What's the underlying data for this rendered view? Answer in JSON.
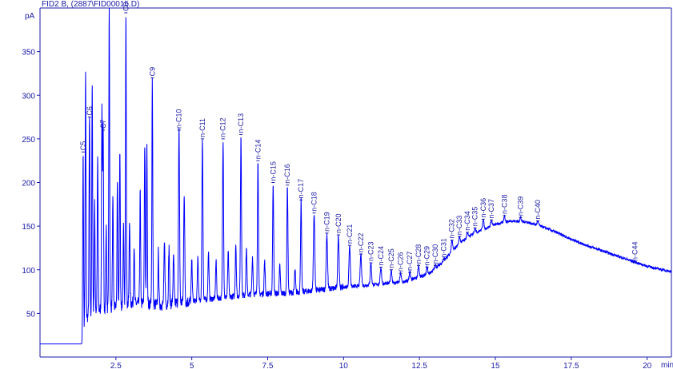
{
  "window": {
    "header": "FID2 B,  (2887\\FID00015.D)"
  },
  "chart_data": {
    "type": "line",
    "title": "",
    "xlabel": "min",
    "ylabel": "pA",
    "xlim": [
      0,
      20.8
    ],
    "ylim": [
      0,
      400
    ],
    "x_ticks": [
      "2.5",
      "5",
      "7.5",
      "10",
      "12.5",
      "15",
      "17.5",
      "20"
    ],
    "y_ticks": [
      "50",
      "100",
      "150",
      "200",
      "250",
      "300",
      "350"
    ],
    "colors": {
      "trace": "#0000ff",
      "axis": "#1a1aa6",
      "text": "#1a1aa6"
    },
    "baseline": [
      [
        0.0,
        15
      ],
      [
        1.4,
        15
      ],
      [
        1.5,
        45
      ],
      [
        2.0,
        55
      ],
      [
        2.5,
        58
      ],
      [
        3.0,
        62
      ],
      [
        4.0,
        60
      ],
      [
        5.0,
        64
      ],
      [
        6.0,
        68
      ],
      [
        7.0,
        72
      ],
      [
        8.0,
        73
      ],
      [
        9.0,
        76
      ],
      [
        10.0,
        80
      ],
      [
        11.0,
        83
      ],
      [
        12.0,
        86
      ],
      [
        12.8,
        95
      ],
      [
        13.3,
        110
      ],
      [
        13.8,
        130
      ],
      [
        14.3,
        142
      ],
      [
        15.0,
        152
      ],
      [
        15.5,
        156
      ],
      [
        16.0,
        155
      ],
      [
        16.5,
        150
      ],
      [
        17.0,
        143
      ],
      [
        17.5,
        135
      ],
      [
        18.0,
        128
      ],
      [
        18.5,
        122
      ],
      [
        19.0,
        116
      ],
      [
        19.5,
        110
      ],
      [
        20.0,
        104
      ],
      [
        20.5,
        100
      ],
      [
        20.8,
        98
      ]
    ],
    "peaks": [
      {
        "x": 1.42,
        "y": 235,
        "label": "C5"
      },
      {
        "x": 1.5,
        "y": 325,
        "label": ""
      },
      {
        "x": 1.63,
        "y": 275,
        "label": "C6"
      },
      {
        "x": 1.72,
        "y": 310,
        "label": ""
      },
      {
        "x": 1.8,
        "y": 175,
        "label": ""
      },
      {
        "x": 1.9,
        "y": 230,
        "label": ""
      },
      {
        "x": 2.04,
        "y": 285,
        "label": ""
      },
      {
        "x": 2.08,
        "y": 260,
        "label": "C7"
      },
      {
        "x": 2.18,
        "y": 150,
        "label": ""
      },
      {
        "x": 2.28,
        "y": 400,
        "label": ""
      },
      {
        "x": 2.4,
        "y": 180,
        "label": ""
      },
      {
        "x": 2.55,
        "y": 200,
        "label": ""
      },
      {
        "x": 2.63,
        "y": 240,
        "label": ""
      },
      {
        "x": 2.75,
        "y": 150,
        "label": ""
      },
      {
        "x": 2.83,
        "y": 400,
        "label": "C8"
      },
      {
        "x": 2.95,
        "y": 160,
        "label": ""
      },
      {
        "x": 3.1,
        "y": 130,
        "label": ""
      },
      {
        "x": 3.3,
        "y": 190,
        "label": ""
      },
      {
        "x": 3.45,
        "y": 245,
        "label": ""
      },
      {
        "x": 3.52,
        "y": 250,
        "label": ""
      },
      {
        "x": 3.7,
        "y": 320,
        "label": "C9"
      },
      {
        "x": 3.9,
        "y": 120,
        "label": ""
      },
      {
        "x": 4.1,
        "y": 130,
        "label": ""
      },
      {
        "x": 4.25,
        "y": 125,
        "label": ""
      },
      {
        "x": 4.4,
        "y": 115,
        "label": ""
      },
      {
        "x": 4.58,
        "y": 260,
        "label": "n-C10"
      },
      {
        "x": 4.75,
        "y": 190,
        "label": ""
      },
      {
        "x": 5.0,
        "y": 110,
        "label": ""
      },
      {
        "x": 5.2,
        "y": 115,
        "label": ""
      },
      {
        "x": 5.35,
        "y": 250,
        "label": "n-C11"
      },
      {
        "x": 5.55,
        "y": 120,
        "label": ""
      },
      {
        "x": 5.8,
        "y": 110,
        "label": ""
      },
      {
        "x": 6.03,
        "y": 250,
        "label": "n-C12"
      },
      {
        "x": 6.2,
        "y": 120,
        "label": ""
      },
      {
        "x": 6.45,
        "y": 130,
        "label": ""
      },
      {
        "x": 6.62,
        "y": 255,
        "label": "n-C13"
      },
      {
        "x": 6.8,
        "y": 125,
        "label": ""
      },
      {
        "x": 7.0,
        "y": 115,
        "label": ""
      },
      {
        "x": 7.18,
        "y": 225,
        "label": "n-C14"
      },
      {
        "x": 7.4,
        "y": 110,
        "label": ""
      },
      {
        "x": 7.68,
        "y": 200,
        "label": "n-C15"
      },
      {
        "x": 7.9,
        "y": 105,
        "label": ""
      },
      {
        "x": 8.15,
        "y": 197,
        "label": "n-C16"
      },
      {
        "x": 8.4,
        "y": 100,
        "label": ""
      },
      {
        "x": 8.6,
        "y": 180,
        "label": "n-C17"
      },
      {
        "x": 9.03,
        "y": 165,
        "label": "n-C18"
      },
      {
        "x": 9.45,
        "y": 142,
        "label": "n-C19"
      },
      {
        "x": 9.83,
        "y": 140,
        "label": "n-C20"
      },
      {
        "x": 10.2,
        "y": 128,
        "label": "n-C21"
      },
      {
        "x": 10.57,
        "y": 118,
        "label": "n-C22"
      },
      {
        "x": 10.9,
        "y": 108,
        "label": "n-C23"
      },
      {
        "x": 11.23,
        "y": 103,
        "label": "n-C24"
      },
      {
        "x": 11.57,
        "y": 100,
        "label": "n-C25"
      },
      {
        "x": 11.88,
        "y": 96,
        "label": "n-C26"
      },
      {
        "x": 12.18,
        "y": 97,
        "label": "n-C27"
      },
      {
        "x": 12.47,
        "y": 105,
        "label": "n-C28"
      },
      {
        "x": 12.75,
        "y": 103,
        "label": "n-C29"
      },
      {
        "x": 13.02,
        "y": 105,
        "label": "n-C30"
      },
      {
        "x": 13.3,
        "y": 112,
        "label": "n-C31"
      },
      {
        "x": 13.57,
        "y": 134,
        "label": "n-C32"
      },
      {
        "x": 13.82,
        "y": 138,
        "label": "n-C33"
      },
      {
        "x": 14.08,
        "y": 143,
        "label": "n-C34"
      },
      {
        "x": 14.33,
        "y": 148,
        "label": "n-C35"
      },
      {
        "x": 14.6,
        "y": 158,
        "label": "n-C36"
      },
      {
        "x": 14.87,
        "y": 157,
        "label": "n-C37"
      },
      {
        "x": 15.3,
        "y": 162,
        "label": "n-C38"
      },
      {
        "x": 15.83,
        "y": 160,
        "label": "n-C39"
      },
      {
        "x": 16.4,
        "y": 156,
        "label": "n-C40"
      },
      {
        "x": 19.6,
        "y": 108,
        "label": "n-C44"
      }
    ]
  }
}
